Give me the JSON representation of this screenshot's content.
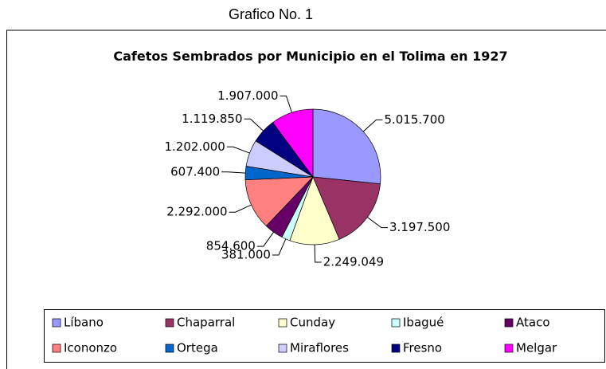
{
  "header": {
    "title": "Grafico No. 1"
  },
  "chart_data": {
    "type": "pie",
    "title": "Cafetos Sembrados por Municipio en el Tolima en 1927",
    "categories": [
      "Líbano",
      "Chaparral",
      "Cunday",
      "Ibagué",
      "Ataco",
      "Icononzo",
      "Ortega",
      "Miraflores",
      "Fresno",
      "Melgar"
    ],
    "values": [
      5015700,
      3197500,
      2249049,
      381000,
      854600,
      2292000,
      607400,
      1202000,
      1119850,
      1907000
    ],
    "value_labels": [
      "5.015.700",
      "3.197.500",
      "2.249.049",
      "381.000",
      "854.600",
      "2.292.000",
      "607.400",
      "1.202.000",
      "1.119.850",
      "1.907.000"
    ],
    "colors": [
      "#9999ff",
      "#993366",
      "#ffffcc",
      "#ccffff",
      "#660066",
      "#ff8080",
      "#0066cc",
      "#ccccff",
      "#000080",
      "#ff00ff"
    ],
    "legend": "bottom"
  }
}
